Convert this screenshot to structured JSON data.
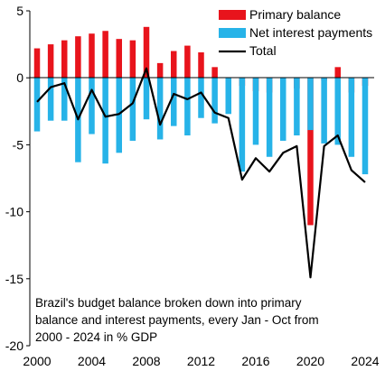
{
  "chart_data": {
    "type": "bar",
    "stacked": true,
    "x": [
      2000,
      2001,
      2002,
      2003,
      2004,
      2005,
      2006,
      2007,
      2008,
      2009,
      2010,
      2011,
      2012,
      2013,
      2014,
      2015,
      2016,
      2017,
      2018,
      2019,
      2020,
      2021,
      2022,
      2023,
      2024
    ],
    "series": [
      {
        "name": "Primary balance",
        "kind": "bar",
        "color": "#e8141c",
        "values": [
          2.2,
          2.5,
          2.8,
          3.1,
          3.3,
          3.5,
          2.9,
          2.8,
          3.8,
          1.1,
          2.0,
          2.4,
          1.9,
          0.8,
          -0.3,
          -0.6,
          -1.0,
          -1.1,
          -0.9,
          -0.8,
          -11.0,
          -0.2,
          0.8,
          -1.1,
          -0.6
        ]
      },
      {
        "name": "Net interest payments",
        "kind": "bar",
        "color": "#27b3e8",
        "values": [
          -4.0,
          -3.2,
          -3.2,
          -6.3,
          -4.2,
          -6.4,
          -5.6,
          -4.7,
          -3.1,
          -4.6,
          -3.6,
          -4.3,
          -3.0,
          -3.4,
          -2.7,
          -7.0,
          -5.0,
          -5.9,
          -4.7,
          -4.3,
          -3.9,
          -4.9,
          -5.0,
          -5.9,
          -7.2
        ]
      },
      {
        "name": "Total",
        "kind": "line",
        "color": "#000000",
        "values": [
          -1.8,
          -0.7,
          -0.4,
          -3.1,
          -0.9,
          -2.9,
          -2.7,
          -1.9,
          0.7,
          -3.5,
          -1.2,
          -1.6,
          -1.1,
          -2.6,
          -3.0,
          -7.6,
          -6.0,
          -7.0,
          -5.6,
          -5.1,
          -14.9,
          -5.1,
          -4.3,
          -6.9,
          -7.8
        ]
      }
    ],
    "xticks": [
      "2000",
      "2004",
      "2008",
      "2012",
      "2016",
      "2020",
      "2024"
    ],
    "yticks": [
      "5",
      "0",
      "-5",
      "-10",
      "-15",
      "-20"
    ],
    "ylim": [
      -20,
      5
    ],
    "legend_position": "top-right",
    "caption_lines": [
      "Brazil's budget balance broken down into primary",
      "balance and interest payments, every Jan - Oct from",
      "2000 - 2024 in % GDP"
    ]
  }
}
